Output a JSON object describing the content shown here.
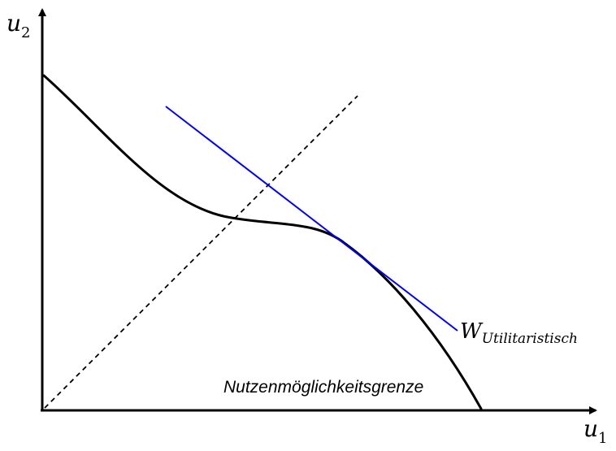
{
  "axes": {
    "y_label": {
      "base": "u",
      "sub": "2"
    },
    "x_label": {
      "base": "u",
      "sub": "1"
    }
  },
  "frontier": {
    "label": "Nutzenmöglichkeitsgrenze"
  },
  "welfare_line": {
    "label_base": "W",
    "label_sub": "Utilitaristisch"
  },
  "colors": {
    "axis": "#000000",
    "frontier": "#000000",
    "welfare_line": "#0000ff",
    "diagonal": "#000000"
  }
}
